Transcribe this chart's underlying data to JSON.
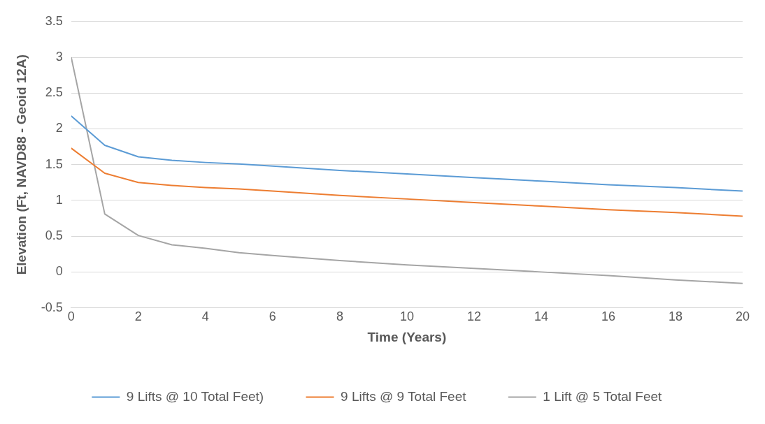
{
  "chart_data": {
    "type": "line",
    "xlabel": "Time (Years)",
    "ylabel": "Elevation (Ft, NAVD88 - Geoid 12A)",
    "x": [
      0,
      1,
      2,
      3,
      4,
      5,
      6,
      8,
      10,
      12,
      14,
      16,
      18,
      20
    ],
    "xlim": [
      0,
      20
    ],
    "xticks": [
      0,
      2,
      4,
      6,
      8,
      10,
      12,
      14,
      16,
      18,
      20
    ],
    "ylim": [
      -0.5,
      3.5
    ],
    "yticks": [
      -0.5,
      0,
      0.5,
      1,
      1.5,
      2,
      2.5,
      3,
      3.5
    ],
    "grid": "y",
    "legend": "bottom",
    "marker": "none",
    "line_style": "solid",
    "series": [
      {
        "name": "9 Lifts @ 10 Total Feet)",
        "color": "#5b9bd5",
        "values": [
          2.18,
          1.77,
          1.61,
          1.56,
          1.53,
          1.51,
          1.48,
          1.42,
          1.37,
          1.32,
          1.27,
          1.22,
          1.18,
          1.13
        ]
      },
      {
        "name": "9 Lifts @ 9 Total Feet",
        "color": "#ed7d31",
        "values": [
          1.73,
          1.38,
          1.25,
          1.21,
          1.18,
          1.16,
          1.13,
          1.07,
          1.02,
          0.97,
          0.92,
          0.87,
          0.83,
          0.78
        ]
      },
      {
        "name": "1 Lift @ 5 Total Feet",
        "color": "#a5a5a5",
        "values": [
          3.0,
          0.81,
          0.51,
          0.38,
          0.33,
          0.27,
          0.23,
          0.16,
          0.1,
          0.05,
          0.0,
          -0.05,
          -0.11,
          -0.16
        ]
      }
    ]
  }
}
